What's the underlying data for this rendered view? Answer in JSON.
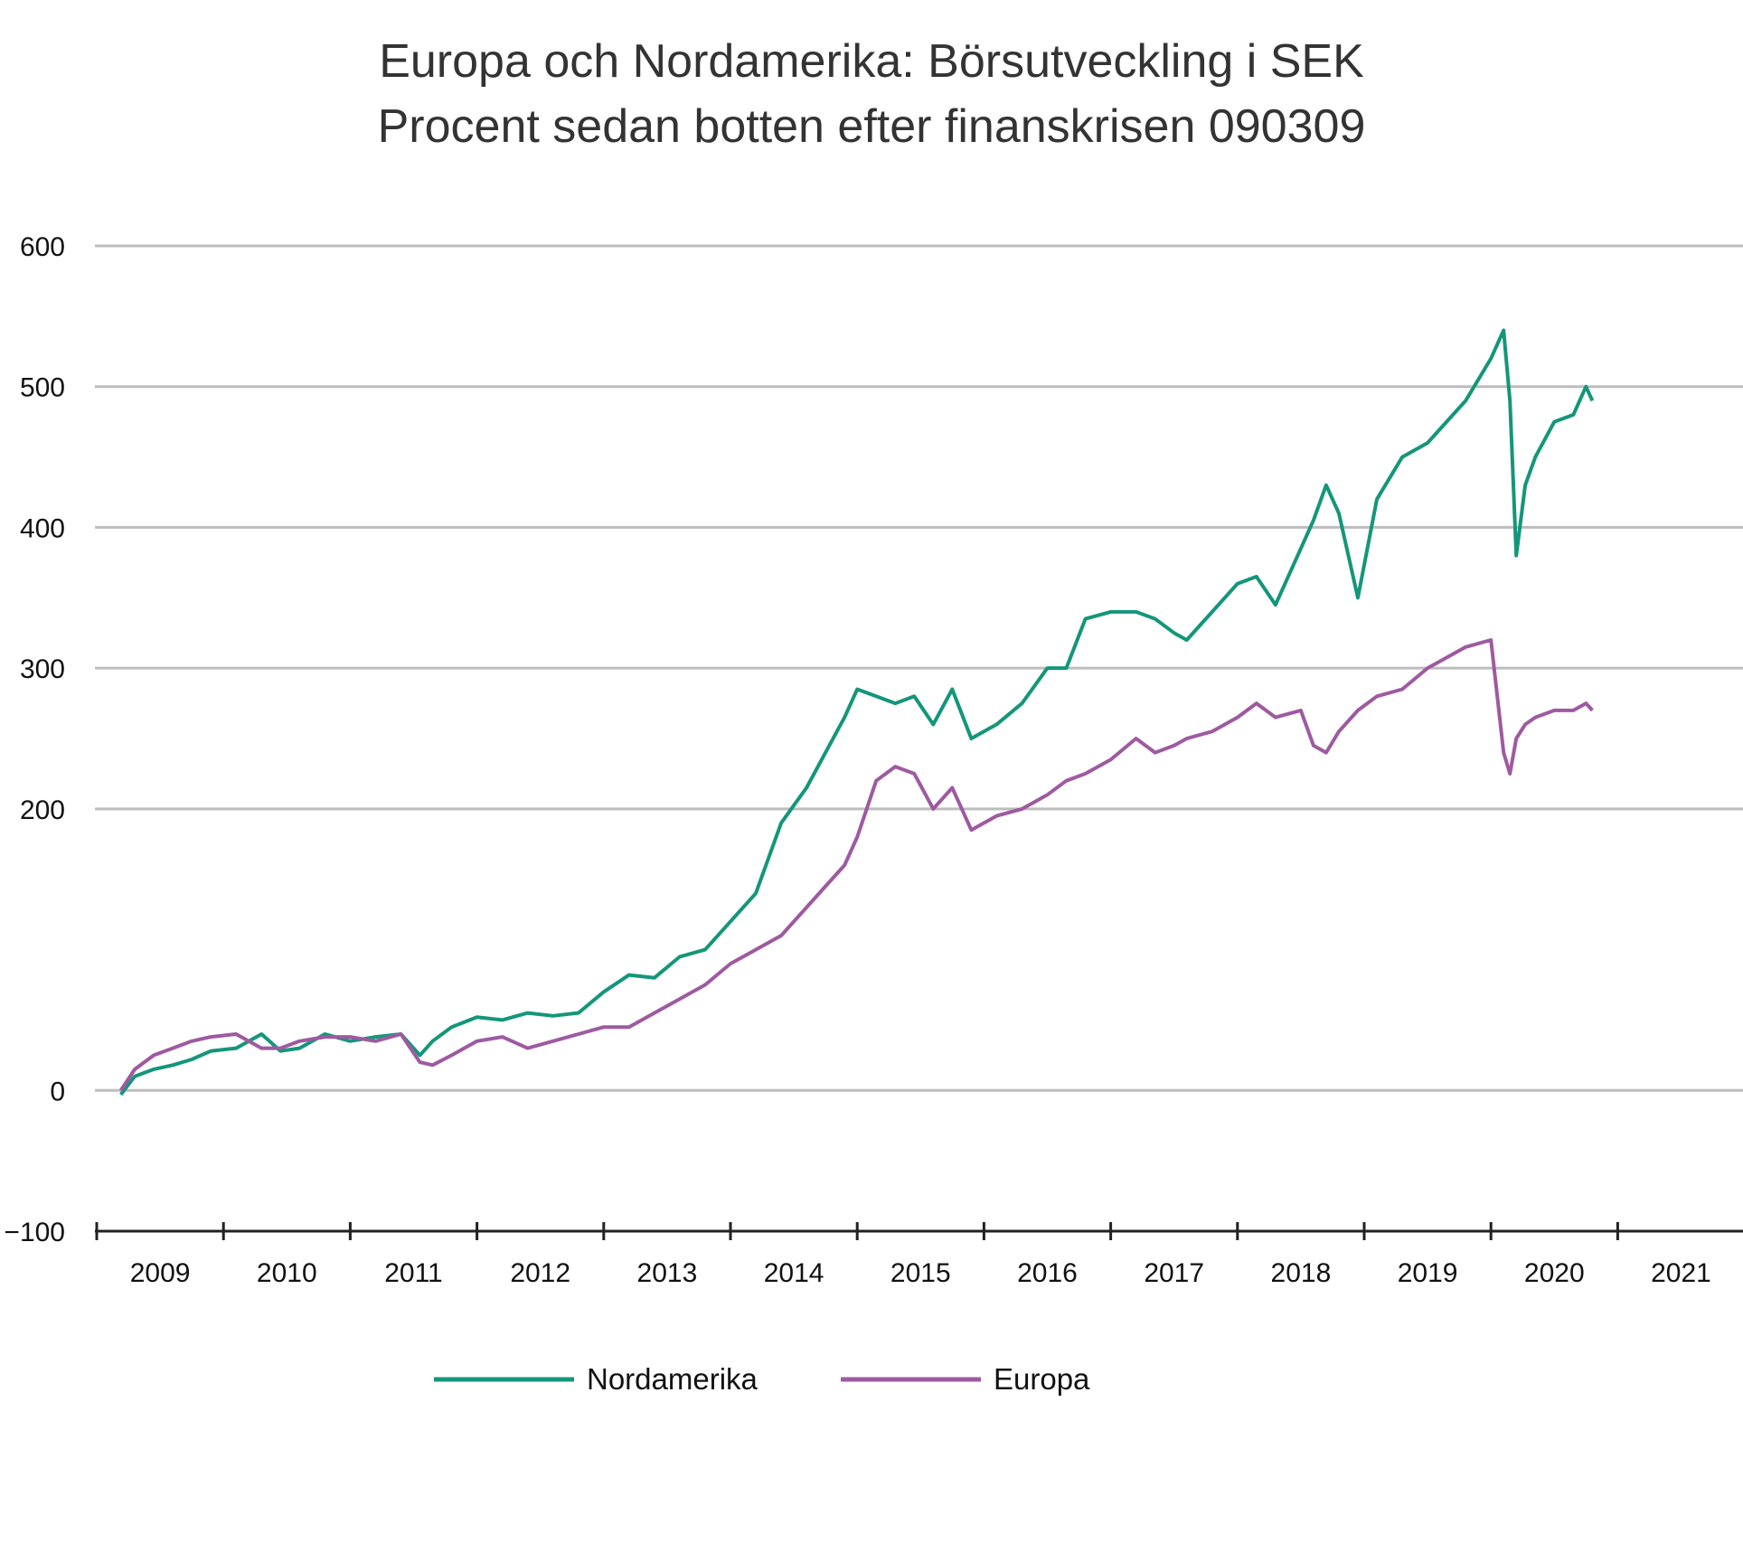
{
  "chart_data": {
    "type": "line",
    "title": "Europa och Nordamerika: Börsutveckling i SEK",
    "subtitle": "Procent sedan botten efter finanskrisen 090309",
    "xlabel": "",
    "ylabel": "",
    "ylim": [
      -100,
      600
    ],
    "yticks": [
      "600",
      "500",
      "400",
      "300",
      "200",
      "100",
      "0",
      "−100"
    ],
    "yticks_shown": [
      "600",
      "500",
      "400",
      "300",
      "200",
      "0",
      "−100"
    ],
    "xlim": [
      2009,
      2022
    ],
    "xticks": [
      "2009",
      "2010",
      "2011",
      "2012",
      "2013",
      "2014",
      "2015",
      "2016",
      "2017",
      "2018",
      "2019",
      "2020",
      "2021"
    ],
    "grid": true,
    "legend_position": "bottom",
    "colors": {
      "Nordamerika": "#14967a",
      "Europa": "#9e5aa0"
    },
    "series": [
      {
        "name": "Nordamerika",
        "x": [
          2009.19,
          2009.3,
          2009.45,
          2009.6,
          2009.75,
          2009.9,
          2010.1,
          2010.3,
          2010.45,
          2010.6,
          2010.8,
          2011.0,
          2011.2,
          2011.4,
          2011.55,
          2011.65,
          2011.8,
          2012.0,
          2012.2,
          2012.4,
          2012.6,
          2012.8,
          2013.0,
          2013.2,
          2013.4,
          2013.6,
          2013.8,
          2014.0,
          2014.2,
          2014.4,
          2014.6,
          2014.75,
          2014.9,
          2015.0,
          2015.15,
          2015.3,
          2015.45,
          2015.6,
          2015.75,
          2015.9,
          2016.1,
          2016.3,
          2016.5,
          2016.65,
          2016.8,
          2017.0,
          2017.2,
          2017.35,
          2017.5,
          2017.6,
          2017.8,
          2018.0,
          2018.15,
          2018.3,
          2018.5,
          2018.6,
          2018.7,
          2018.8,
          2018.95,
          2019.1,
          2019.3,
          2019.5,
          2019.7,
          2019.8,
          2020.0,
          2020.1,
          2020.15,
          2020.2,
          2020.27,
          2020.35,
          2020.5,
          2020.65,
          2020.75,
          2020.8
        ],
        "values": [
          -3,
          10,
          15,
          18,
          22,
          28,
          30,
          40,
          28,
          30,
          40,
          35,
          38,
          40,
          25,
          35,
          45,
          52,
          50,
          55,
          53,
          55,
          70,
          82,
          80,
          95,
          100,
          120,
          140,
          190,
          215,
          240,
          265,
          285,
          280,
          275,
          280,
          260,
          285,
          250,
          260,
          275,
          300,
          300,
          335,
          340,
          340,
          335,
          325,
          320,
          340,
          360,
          365,
          345,
          385,
          405,
          430,
          410,
          350,
          420,
          450,
          460,
          480,
          490,
          520,
          540,
          490,
          380,
          430,
          450,
          475,
          480,
          500,
          490
        ]
      },
      {
        "name": "Europa",
        "x": [
          2009.19,
          2009.3,
          2009.45,
          2009.6,
          2009.75,
          2009.9,
          2010.1,
          2010.3,
          2010.45,
          2010.6,
          2010.8,
          2011.0,
          2011.2,
          2011.4,
          2011.55,
          2011.65,
          2011.8,
          2012.0,
          2012.2,
          2012.4,
          2012.6,
          2012.8,
          2013.0,
          2013.2,
          2013.4,
          2013.6,
          2013.8,
          2014.0,
          2014.2,
          2014.4,
          2014.6,
          2014.75,
          2014.9,
          2015.0,
          2015.15,
          2015.3,
          2015.45,
          2015.6,
          2015.75,
          2015.9,
          2016.1,
          2016.3,
          2016.5,
          2016.65,
          2016.8,
          2017.0,
          2017.2,
          2017.35,
          2017.5,
          2017.6,
          2017.8,
          2018.0,
          2018.15,
          2018.3,
          2018.5,
          2018.6,
          2018.7,
          2018.8,
          2018.95,
          2019.1,
          2019.3,
          2019.5,
          2019.7,
          2019.8,
          2020.0,
          2020.1,
          2020.15,
          2020.2,
          2020.27,
          2020.35,
          2020.5,
          2020.65,
          2020.75,
          2020.8
        ],
        "values": [
          0,
          15,
          25,
          30,
          35,
          38,
          40,
          30,
          30,
          35,
          38,
          38,
          35,
          40,
          20,
          18,
          25,
          35,
          38,
          30,
          35,
          40,
          45,
          45,
          55,
          65,
          75,
          90,
          100,
          110,
          130,
          145,
          160,
          180,
          220,
          230,
          225,
          200,
          215,
          185,
          195,
          200,
          210,
          220,
          225,
          235,
          250,
          240,
          245,
          250,
          255,
          265,
          275,
          265,
          270,
          245,
          240,
          255,
          270,
          280,
          285,
          300,
          310,
          315,
          320,
          240,
          225,
          250,
          260,
          265,
          270,
          270,
          275,
          270
        ]
      }
    ]
  }
}
